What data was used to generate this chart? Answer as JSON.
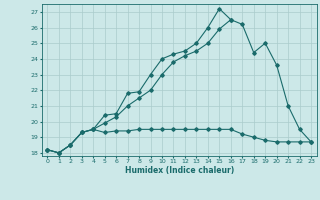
{
  "xlabel": "Humidex (Indice chaleur)",
  "background_color": "#cce8e8",
  "grid_color": "#aacccc",
  "line_color": "#1a6b6b",
  "xlim": [
    -0.5,
    23.5
  ],
  "ylim": [
    17.8,
    27.5
  ],
  "yticks": [
    18,
    19,
    20,
    21,
    22,
    23,
    24,
    25,
    26,
    27
  ],
  "xticks": [
    0,
    1,
    2,
    3,
    4,
    5,
    6,
    7,
    8,
    9,
    10,
    11,
    12,
    13,
    14,
    15,
    16,
    17,
    18,
    19,
    20,
    21,
    22,
    23
  ],
  "line1_x": [
    0,
    1,
    2,
    3,
    4,
    5,
    6,
    7,
    8,
    9,
    10,
    11,
    12,
    13,
    14,
    15,
    16
  ],
  "line1_y": [
    18.2,
    18.0,
    18.5,
    19.3,
    19.5,
    20.4,
    20.5,
    21.8,
    21.9,
    23.0,
    24.0,
    24.3,
    24.5,
    25.0,
    26.0,
    27.2,
    26.5
  ],
  "line2_x": [
    0,
    1,
    2,
    3,
    4,
    5,
    6,
    7,
    8,
    9,
    10,
    11,
    12,
    13,
    14,
    15,
    16,
    17,
    18,
    19,
    20,
    21,
    22,
    23
  ],
  "line2_y": [
    18.2,
    18.0,
    18.5,
    19.3,
    19.5,
    19.9,
    20.3,
    21.0,
    21.5,
    22.0,
    23.0,
    23.8,
    24.2,
    24.5,
    25.0,
    25.9,
    26.5,
    26.2,
    24.4,
    25.0,
    23.6,
    21.0,
    19.5,
    18.7
  ],
  "line3_x": [
    0,
    1,
    2,
    3,
    4,
    5,
    6,
    7,
    8,
    9,
    10,
    11,
    12,
    13,
    14,
    15,
    16,
    17,
    18,
    19,
    20,
    21,
    22,
    23
  ],
  "line3_y": [
    18.2,
    18.0,
    18.5,
    19.3,
    19.5,
    19.3,
    19.4,
    19.4,
    19.5,
    19.5,
    19.5,
    19.5,
    19.5,
    19.5,
    19.5,
    19.5,
    19.5,
    19.2,
    19.0,
    18.8,
    18.7,
    18.7,
    18.7,
    18.7
  ]
}
